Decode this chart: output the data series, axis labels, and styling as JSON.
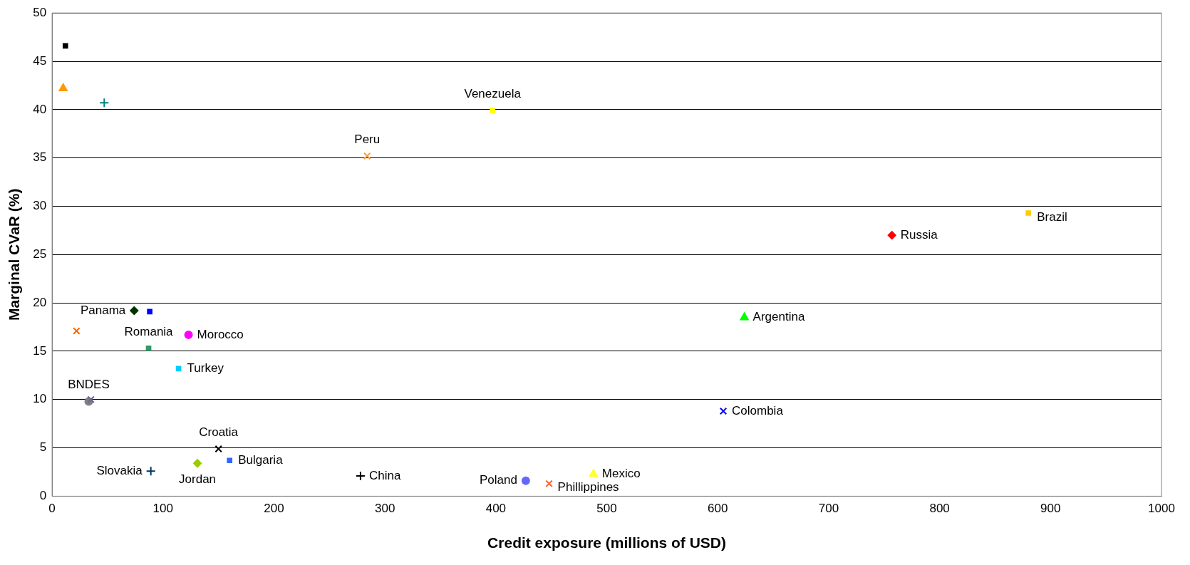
{
  "chart_data": {
    "type": "scatter",
    "xlabel": "Credit exposure (millions of USD)",
    "ylabel": "Marginal CVaR (%)",
    "xlim": [
      0,
      1000
    ],
    "xticks": [
      0,
      100,
      200,
      300,
      400,
      500,
      600,
      700,
      800,
      900,
      1000
    ],
    "ylim": [
      0,
      50
    ],
    "yticks": [
      0,
      5,
      10,
      15,
      20,
      25,
      30,
      35,
      40,
      45,
      50
    ],
    "grid": "y",
    "legend": false,
    "series": [
      {
        "color": "#000000",
        "marker": "square",
        "x": [
          12
        ],
        "values": [
          46.6
        ]
      },
      {
        "color": "#ff9900",
        "marker": "triangle",
        "x": [
          10
        ],
        "values": [
          42.2
        ]
      },
      {
        "color": "#008080",
        "marker": "plus",
        "x": [
          47
        ],
        "values": [
          40.7
        ]
      },
      {
        "name": "Venezuela",
        "color": "#ffff00",
        "marker": "square",
        "x": [
          397
        ],
        "values": [
          39.9
        ]
      },
      {
        "name": "Peru",
        "color": "#ff9933",
        "marker": "cross",
        "x": [
          284
        ],
        "values": [
          35.2
        ]
      },
      {
        "name": "Brazil",
        "color": "#ffcc00",
        "marker": "square",
        "x": [
          880
        ],
        "values": [
          29.3
        ]
      },
      {
        "name": "Russia",
        "color": "#ff0000",
        "marker": "diamond",
        "x": [
          757
        ],
        "values": [
          27
        ]
      },
      {
        "name": "Argentina",
        "color": "#00ff00",
        "marker": "triangle",
        "x": [
          624
        ],
        "values": [
          18.5
        ]
      },
      {
        "name": "Panama",
        "color": "#003300",
        "marker": "diamond",
        "x": [
          74
        ],
        "values": [
          19.2
        ]
      },
      {
        "color": "#0000ff",
        "marker": "square",
        "x": [
          88
        ],
        "values": [
          19.1
        ]
      },
      {
        "color": "#ff6600",
        "marker": "cross",
        "x": [
          22
        ],
        "values": [
          17.1
        ]
      },
      {
        "name": "Morocco",
        "color": "#ff00ff",
        "marker": "circle",
        "x": [
          123
        ],
        "values": [
          16.7
        ]
      },
      {
        "name": "Romania",
        "color": "#339966",
        "marker": "square",
        "x": [
          87
        ],
        "values": [
          15.3
        ]
      },
      {
        "name": "Turkey",
        "color": "#00ccff",
        "marker": "square",
        "x": [
          114
        ],
        "values": [
          13.2
        ]
      },
      {
        "color": "#666699",
        "marker": "cross",
        "x": [
          35
        ],
        "values": [
          10
        ]
      },
      {
        "name": "BNDES",
        "color": "#808080",
        "marker": "circle",
        "x": [
          33
        ],
        "values": [
          9.8
        ]
      },
      {
        "name": "Colombia",
        "color": "#0000ff",
        "marker": "cross",
        "x": [
          605
        ],
        "values": [
          8.8
        ]
      },
      {
        "name": "Croatia",
        "color": "#000000",
        "marker": "cross",
        "x": [
          150
        ],
        "values": [
          4.9
        ]
      },
      {
        "name": "Bulgaria",
        "color": "#3366ff",
        "marker": "square",
        "x": [
          160
        ],
        "values": [
          3.7
        ]
      },
      {
        "name": "Jordan",
        "color": "#99cc00",
        "marker": "diamond",
        "x": [
          131
        ],
        "values": [
          3.4
        ]
      },
      {
        "name": "Slovakia",
        "color": "#003366",
        "marker": "plus",
        "x": [
          89
        ],
        "values": [
          2.6
        ]
      },
      {
        "name": "China",
        "color": "#000000",
        "marker": "plus",
        "x": [
          278
        ],
        "values": [
          2.1
        ]
      },
      {
        "name": "Poland",
        "color": "#6666ff",
        "marker": "circle",
        "x": [
          427
        ],
        "values": [
          1.6
        ]
      },
      {
        "name": "Phillippines",
        "color": "#ff6633",
        "marker": "cross",
        "x": [
          448
        ],
        "values": [
          1.3
        ]
      },
      {
        "name": "Mexico",
        "color": "#ffff33",
        "marker": "triangle",
        "x": [
          488
        ],
        "values": [
          2.3
        ]
      }
    ]
  }
}
